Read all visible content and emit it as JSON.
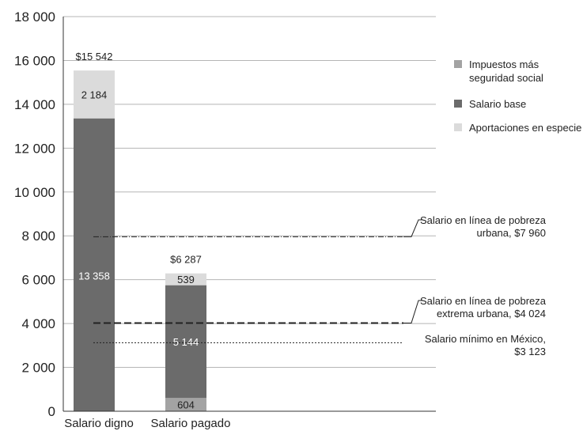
{
  "chart_data": {
    "type": "bar",
    "stacked": true,
    "categories": [
      "Salario digno",
      "Salario pagado"
    ],
    "series": [
      {
        "name": "Impuestos más seguridad social",
        "color": "#a3a3a3",
        "values": [
          0,
          604
        ]
      },
      {
        "name": "Salario base",
        "color": "#6b6b6b",
        "values": [
          13358,
          5144
        ]
      },
      {
        "name": "Aportaciones en especie",
        "color": "#dbdbdb",
        "values": [
          2184,
          539
        ]
      }
    ],
    "segment_labels": [
      [
        "",
        "13 358",
        "2 184"
      ],
      [
        "604",
        "5 144",
        "539"
      ]
    ],
    "totals": [
      "$15 542",
      "$6 287"
    ],
    "total_values": [
      15542,
      6287
    ],
    "ylim": [
      0,
      18000
    ],
    "yticks": [
      0,
      2000,
      4000,
      6000,
      8000,
      10000,
      12000,
      14000,
      16000,
      18000
    ],
    "ytick_labels": [
      "0",
      "2 000",
      "4 000",
      "6 000",
      "8 000",
      "10 000",
      "12 000",
      "14 000",
      "16 000",
      "18 000"
    ],
    "grid": true,
    "legend_position": "right",
    "legend": [
      {
        "lines": [
          "Impuestos más",
          "seguridad social"
        ],
        "color": "#a3a3a3"
      },
      {
        "lines": [
          "Salario base"
        ],
        "color": "#6b6b6b"
      },
      {
        "lines": [
          "Aportaciones en especie"
        ],
        "color": "#dbdbdb"
      }
    ],
    "reference_lines": [
      {
        "value": 7960,
        "style": "dashdot",
        "lines": [
          "Salario en línea de pobreza",
          "urbana, $7 960"
        ]
      },
      {
        "value": 4024,
        "style": "dashed",
        "lines": [
          "Salario en línea de pobreza",
          "extrema urbana, $4 024"
        ]
      },
      {
        "value": 3123,
        "style": "dotted",
        "lines": [
          "Salario mínimo en México,",
          "$3 123"
        ]
      }
    ],
    "title": "",
    "xlabel": "",
    "ylabel": ""
  }
}
